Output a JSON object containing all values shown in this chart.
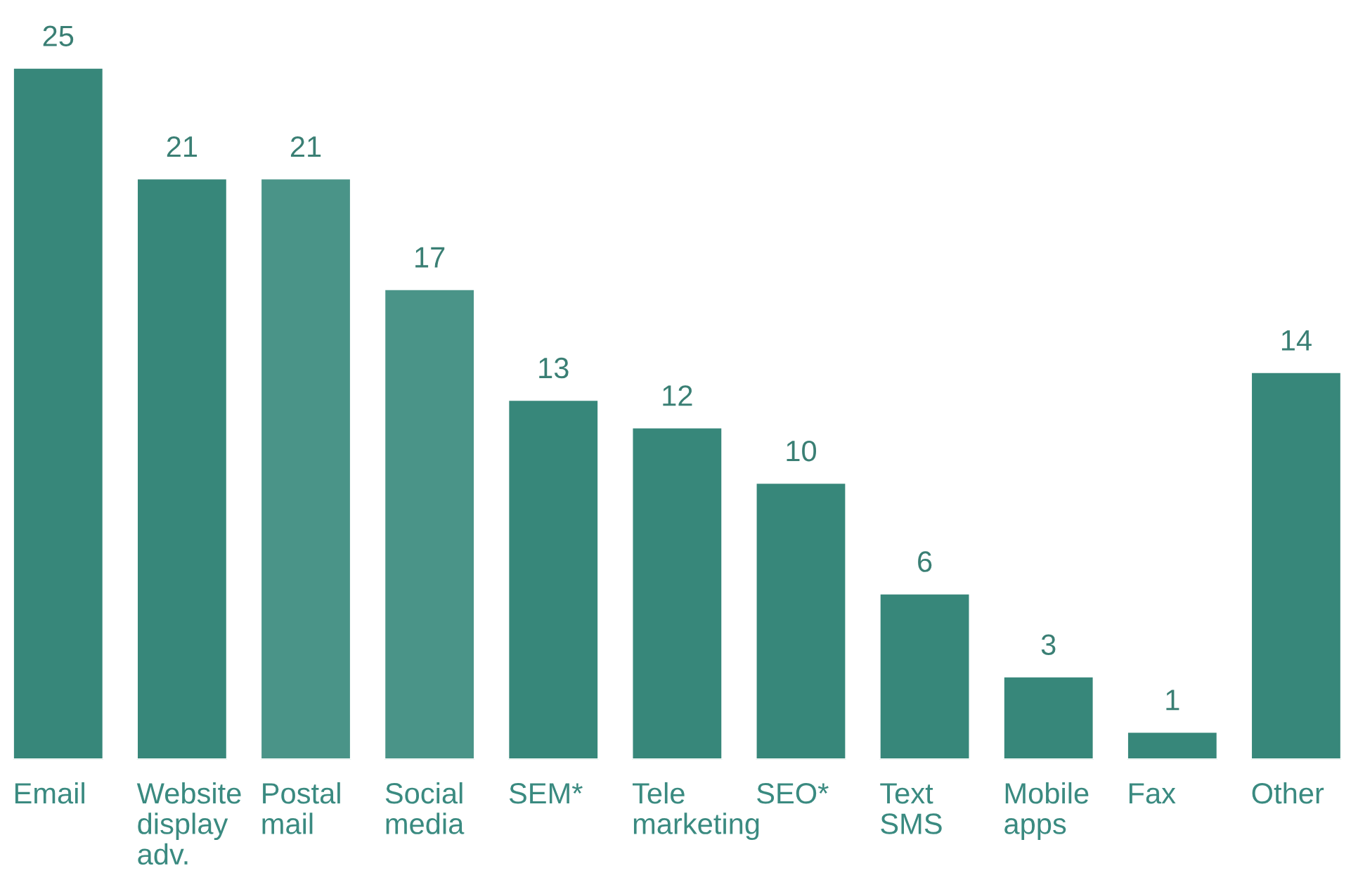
{
  "chart_data": {
    "type": "bar",
    "categories": [
      "Email",
      "Website\ndisplay\nadv.",
      "Postal\nmail",
      "Social\nmedia",
      "SEM*",
      "Tele\nmarketing",
      "SEO*",
      "Text\nSMS",
      "Mobile\napps",
      "Fax",
      "Other"
    ],
    "values": [
      25,
      21,
      21,
      17,
      13,
      12,
      10,
      6,
      3,
      1,
      14
    ],
    "colors": [
      "#37877a",
      "#37877a",
      "#4a9488",
      "#4a9488",
      "#37877a",
      "#37877a",
      "#37877a",
      "#37877a",
      "#37877a",
      "#37877a",
      "#37877a"
    ],
    "data_labels": true
  }
}
